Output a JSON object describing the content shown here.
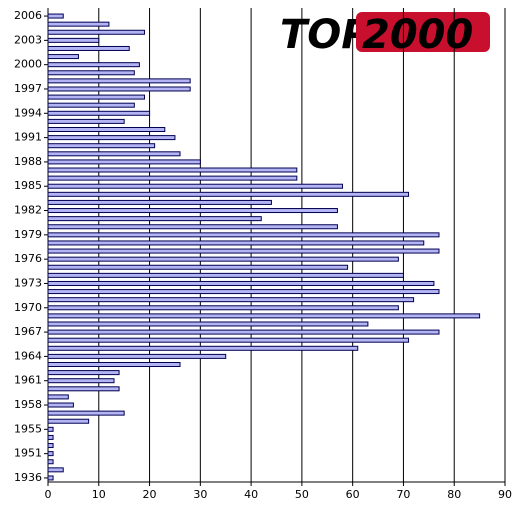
{
  "logo": {
    "text1": "TOP",
    "text2": "2000"
  },
  "chart_data": {
    "type": "hbar",
    "categories": [
      "2006",
      null,
      null,
      "2003",
      null,
      null,
      "2000",
      null,
      null,
      "1997",
      null,
      null,
      "1994",
      null,
      null,
      "1991",
      null,
      null,
      "1988",
      null,
      null,
      "1985",
      null,
      null,
      "1982",
      null,
      null,
      "1979",
      null,
      null,
      "1976",
      null,
      null,
      "1973",
      null,
      null,
      "1970",
      null,
      null,
      "1967",
      null,
      null,
      "1964",
      null,
      null,
      "1961",
      null,
      null,
      "1958",
      null,
      null,
      "1955",
      null,
      null,
      "1951",
      null,
      null,
      "1936"
    ],
    "values": [
      3,
      12,
      19,
      10,
      16,
      6,
      18,
      17,
      28,
      28,
      19,
      17,
      20,
      15,
      23,
      25,
      21,
      26,
      30,
      49,
      49,
      58,
      71,
      44,
      57,
      42,
      57,
      77,
      74,
      77,
      69,
      59,
      70,
      76,
      77,
      72,
      69,
      85,
      63,
      77,
      71,
      61,
      35,
      26,
      14,
      13,
      14,
      4,
      5,
      15,
      8,
      1,
      1,
      1,
      1,
      1,
      3,
      1
    ],
    "color": "#b4b4f4",
    "xlim": [
      0,
      90
    ],
    "xticks": [
      0,
      10,
      20,
      30,
      40,
      50,
      60,
      70,
      80,
      90
    ],
    "grid": true
  }
}
